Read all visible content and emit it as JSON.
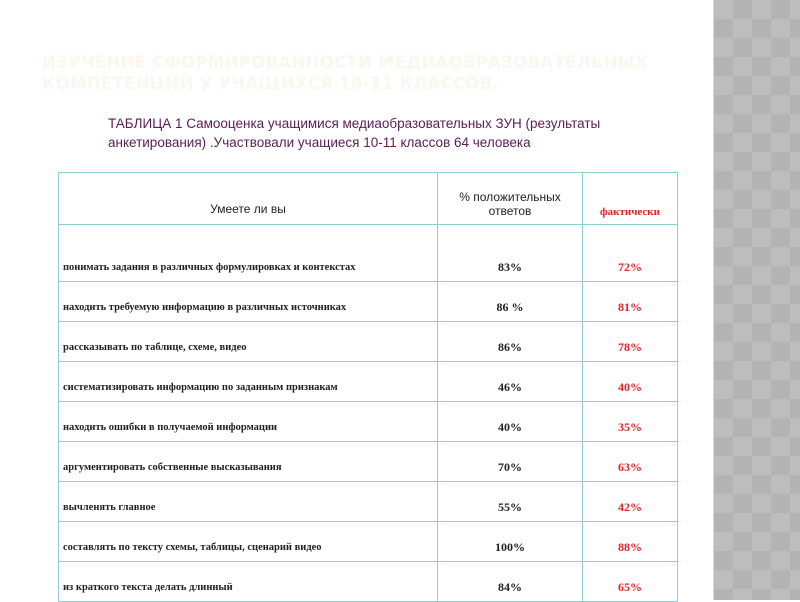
{
  "title": "ИЗУЧЕНИЕ СФОРМИРОВАННОСТИ МЕДИАОБРАЗОВАТЕЛЬНЫХ КОМПЕТЕНЦИЙ У УЧАЩИХСЯ 10-11 КЛАССОВ.",
  "caption": "ТАБЛИЦА 1 Самооценка учащимися медиаобразовательных ЗУН (результаты анкетирования) .Участвовали учащиеся 10-11 классов  64 человека",
  "table": {
    "headers": [
      "Умеете ли вы",
      "% положительных ответов",
      "фактически"
    ],
    "rows": [
      {
        "skill": "понимать задания в различных формулировках и контекстах",
        "positive": "83%",
        "actual": "72%"
      },
      {
        "skill": "находить требуемую информацию в различных источниках",
        "positive": "86 %",
        "actual": "81%"
      },
      {
        "skill": "рассказывать по таблице, схеме, видео",
        "positive": "86%",
        "actual": "78%"
      },
      {
        "skill": "систематизировать информацию по заданным признакам",
        "positive": "46%",
        "actual": "40%"
      },
      {
        "skill": "находить ошибки в получаемой информации",
        "positive": "40%",
        "actual": "35%"
      },
      {
        "skill": "аргументировать собственные высказывания",
        "positive": "70%",
        "actual": "63%"
      },
      {
        "skill": "вычленять главное",
        "positive": "55%",
        "actual": "42%"
      },
      {
        "skill": "составлять по тексту схемы, таблицы, сценарий видео",
        "positive": "100%",
        "actual": "88%"
      },
      {
        "skill": "из краткого текста делать длинный",
        "positive": "84%",
        "actual": "65%"
      }
    ]
  }
}
